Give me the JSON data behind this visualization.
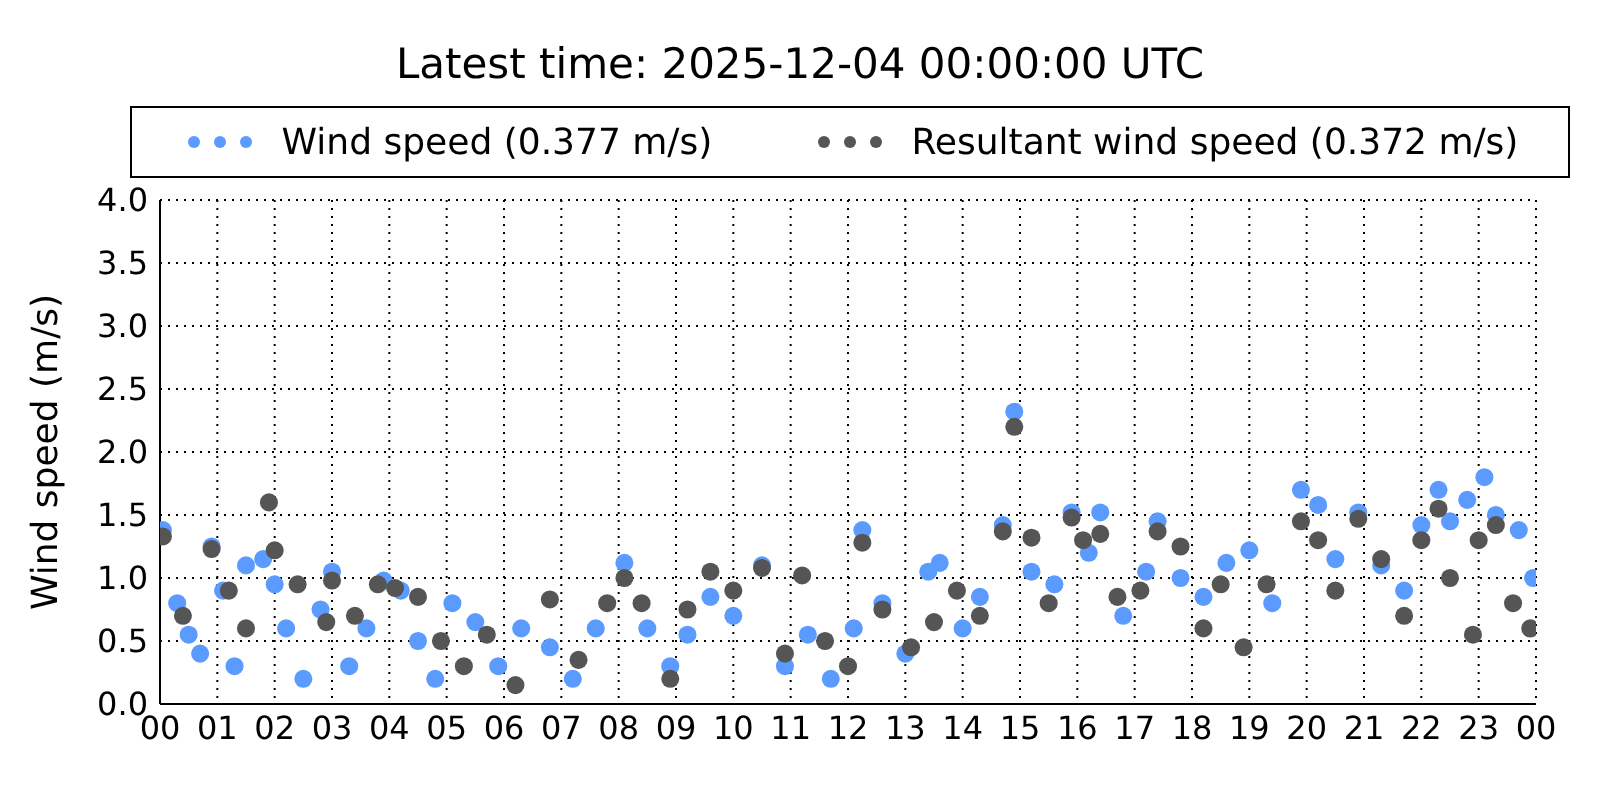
{
  "chart_data": {
    "type": "scatter",
    "title": "Latest time: 2025-12-04 00:00:00 UTC",
    "ylabel": "Wind speed (m/s)",
    "legend": "top",
    "grid": true,
    "marker": "circle",
    "xlim": [
      0,
      24
    ],
    "xticks": [
      {
        "value": 0,
        "label": "00"
      },
      {
        "value": 1,
        "label": "01"
      },
      {
        "value": 2,
        "label": "02"
      },
      {
        "value": 3,
        "label": "03"
      },
      {
        "value": 4,
        "label": "04"
      },
      {
        "value": 5,
        "label": "05"
      },
      {
        "value": 6,
        "label": "06"
      },
      {
        "value": 7,
        "label": "07"
      },
      {
        "value": 8,
        "label": "08"
      },
      {
        "value": 9,
        "label": "09"
      },
      {
        "value": 10,
        "label": "10"
      },
      {
        "value": 11,
        "label": "11"
      },
      {
        "value": 12,
        "label": "12"
      },
      {
        "value": 13,
        "label": "13"
      },
      {
        "value": 14,
        "label": "14"
      },
      {
        "value": 15,
        "label": "15"
      },
      {
        "value": 16,
        "label": "16"
      },
      {
        "value": 17,
        "label": "17"
      },
      {
        "value": 18,
        "label": "18"
      },
      {
        "value": 19,
        "label": "19"
      },
      {
        "value": 20,
        "label": "20"
      },
      {
        "value": 21,
        "label": "21"
      },
      {
        "value": 22,
        "label": "22"
      },
      {
        "value": 23,
        "label": "23"
      },
      {
        "value": 24,
        "label": "00"
      }
    ],
    "ylim": [
      0,
      4
    ],
    "yticks": [
      {
        "value": 0,
        "label": "0.0"
      },
      {
        "value": 0.5,
        "label": "0.5"
      },
      {
        "value": 1,
        "label": "1.0"
      },
      {
        "value": 1.5,
        "label": "1.5"
      },
      {
        "value": 2,
        "label": "2.0"
      },
      {
        "value": 2.5,
        "label": "2.5"
      },
      {
        "value": 3,
        "label": "3.0"
      },
      {
        "value": 3.5,
        "label": "3.5"
      },
      {
        "value": 4,
        "label": "4.0"
      }
    ],
    "series": [
      {
        "name": "Wind speed (0.377 m/s)",
        "color": "#5b9bff",
        "x": [
          0.05,
          0.3,
          0.5,
          0.7,
          0.9,
          1.1,
          1.3,
          1.5,
          1.8,
          2.0,
          2.2,
          2.5,
          2.8,
          3.0,
          3.3,
          3.6,
          3.9,
          4.2,
          4.5,
          4.8,
          5.1,
          5.5,
          5.9,
          6.3,
          6.8,
          7.2,
          7.6,
          8.1,
          8.5,
          8.9,
          9.2,
          9.6,
          10.0,
          10.5,
          10.9,
          11.3,
          11.7,
          12.1,
          12.25,
          12.6,
          13.0,
          13.4,
          13.6,
          14.0,
          14.3,
          14.7,
          14.9,
          15.2,
          15.6,
          15.9,
          16.2,
          16.4,
          16.8,
          17.2,
          17.4,
          17.8,
          18.2,
          18.6,
          19.0,
          19.4,
          19.9,
          20.2,
          20.5,
          20.9,
          21.3,
          21.7,
          22.0,
          22.3,
          22.5,
          22.8,
          23.1,
          23.3,
          23.7,
          23.95
        ],
        "values": [
          1.38,
          0.8,
          0.55,
          0.4,
          1.25,
          0.9,
          0.3,
          1.1,
          1.15,
          0.95,
          0.6,
          0.2,
          0.75,
          1.05,
          0.3,
          0.6,
          0.98,
          0.9,
          0.5,
          0.2,
          0.8,
          0.65,
          0.3,
          0.6,
          0.45,
          0.2,
          0.6,
          1.12,
          0.6,
          0.3,
          0.55,
          0.85,
          0.7,
          1.1,
          0.3,
          0.55,
          0.2,
          0.6,
          1.38,
          0.8,
          0.4,
          1.05,
          1.12,
          0.6,
          0.85,
          1.42,
          2.32,
          1.05,
          0.95,
          1.52,
          1.2,
          1.52,
          0.7,
          1.05,
          1.45,
          1.0,
          0.85,
          1.12,
          1.22,
          0.8,
          1.7,
          1.58,
          1.15,
          1.52,
          1.1,
          0.9,
          1.42,
          1.7,
          1.45,
          1.62,
          1.8,
          1.5,
          1.38,
          1.0
        ]
      },
      {
        "name": "Resultant wind speed (0.372 m/s)",
        "color": "#555555",
        "x": [
          0.05,
          0.4,
          0.9,
          1.2,
          1.5,
          1.9,
          2.0,
          2.4,
          2.9,
          3.0,
          3.4,
          3.8,
          4.1,
          4.5,
          4.9,
          5.3,
          5.7,
          6.2,
          6.8,
          7.3,
          7.8,
          8.1,
          8.4,
          8.9,
          9.2,
          9.6,
          10.0,
          10.5,
          10.9,
          11.2,
          11.6,
          12.0,
          12.25,
          12.6,
          13.1,
          13.5,
          13.9,
          14.3,
          14.7,
          14.9,
          15.2,
          15.5,
          15.9,
          16.1,
          16.4,
          16.7,
          17.1,
          17.4,
          17.8,
          18.2,
          18.5,
          18.9,
          19.3,
          19.9,
          20.2,
          20.5,
          20.9,
          21.3,
          21.7,
          22.0,
          22.3,
          22.5,
          22.9,
          23.0,
          23.3,
          23.6,
          23.9
        ],
        "values": [
          1.33,
          0.7,
          1.23,
          0.9,
          0.6,
          1.6,
          1.22,
          0.95,
          0.65,
          0.98,
          0.7,
          0.95,
          0.92,
          0.85,
          0.5,
          0.3,
          0.55,
          0.15,
          0.83,
          0.35,
          0.8,
          1.0,
          0.8,
          0.2,
          0.75,
          1.05,
          0.9,
          1.08,
          0.4,
          1.02,
          0.5,
          0.3,
          1.28,
          0.75,
          0.45,
          0.65,
          0.9,
          0.7,
          1.37,
          2.2,
          1.32,
          0.8,
          1.48,
          1.3,
          1.35,
          0.85,
          0.9,
          1.37,
          1.25,
          0.6,
          0.95,
          0.45,
          0.95,
          1.45,
          1.3,
          0.9,
          1.47,
          1.15,
          0.7,
          1.3,
          1.55,
          1.0,
          0.55,
          1.3,
          1.42,
          0.8,
          0.6
        ]
      }
    ]
  }
}
